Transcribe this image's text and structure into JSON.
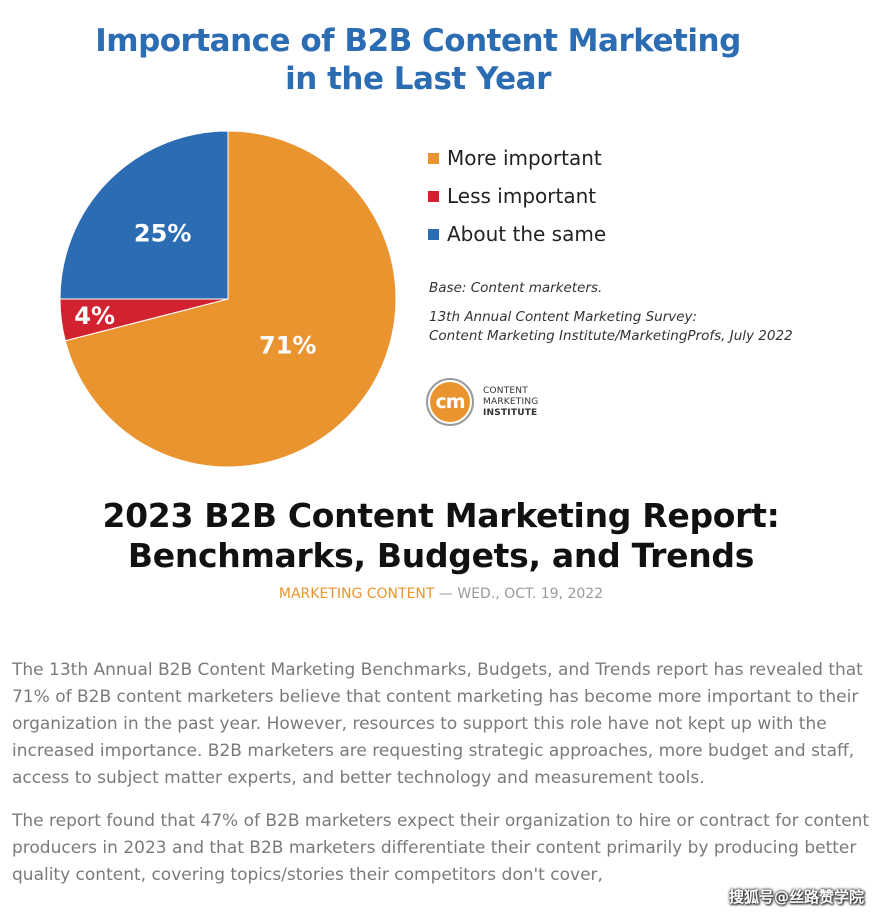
{
  "chart_data": {
    "type": "pie",
    "title_line1": "Importance of B2B Content Marketing",
    "title_line2": "in the Last Year",
    "categories": [
      "More important",
      "Less important",
      "About the same"
    ],
    "values": [
      71,
      4,
      25
    ],
    "labels": [
      "71%",
      "4%",
      "25%"
    ],
    "colors": [
      "#ea9430",
      "#d22230",
      "#2b6cb3"
    ],
    "legend_position": "right"
  },
  "notes": {
    "base": "Base: Content marketers.",
    "source_line1": "13th Annual Content Marketing Survey:",
    "source_line2": "Content Marketing Institute/MarketingProfs, July 2022"
  },
  "logo": {
    "mark": "cm",
    "line1": "CONTENT",
    "line2": "MARKETING",
    "line3": "INSTITUTE"
  },
  "article": {
    "title_line1": "2023 B2B Content Marketing Report:",
    "title_line2": "Benchmarks, Budgets, and Trends",
    "category": "MARKETING CONTENT",
    "separator": " — ",
    "date": "WED., OCT. 19, 2022",
    "paragraph1": "The 13th Annual B2B Content Marketing Benchmarks, Budgets, and Trends report has revealed that 71% of B2B content marketers believe that content marketing has become more important to their organization in the past year. However, resources to support this role have not kept up with the increased importance. B2B marketers are requesting strategic approaches, more budget and staff, access to subject matter experts, and better technology and measurement tools.",
    "paragraph2": "The report found that 47% of B2B marketers expect their organization to hire or contract for content producers in 2023 and that B2B marketers differentiate their content primarily by producing better quality content, covering topics/stories their competitors don't cover,"
  },
  "watermark": "搜狐号@丝路赞学院"
}
